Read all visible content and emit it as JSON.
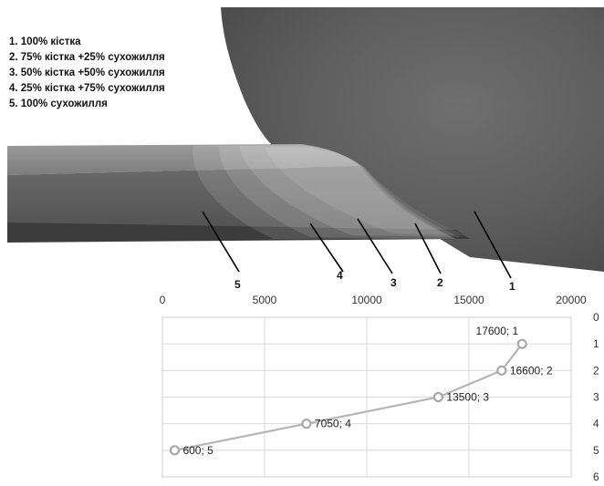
{
  "legend": [
    "1. 100% кістка",
    "2. 75% кістка +25% сухожилля",
    "3. 50% кістка +50% сухожилля",
    "4. 25% кістка +75% сухожилля",
    "5. 100% сухожилля"
  ],
  "zone_labels": [
    "5",
    "4",
    "3",
    "2",
    "1"
  ],
  "chart_data": {
    "type": "line",
    "x_ticks": [
      "0",
      "5000",
      "10000",
      "15000",
      "20000"
    ],
    "y_ticks": [
      "0",
      "1",
      "2",
      "3",
      "4",
      "5",
      "6"
    ],
    "xlim": [
      0,
      20000
    ],
    "ylim": [
      0,
      6
    ],
    "y_inverted": true,
    "x_axis_position": "top",
    "y_axis_position": "right",
    "grid": true,
    "points": [
      {
        "x": 600,
        "y": 5,
        "label": "600; 5"
      },
      {
        "x": 7050,
        "y": 4,
        "label": "7050; 4"
      },
      {
        "x": 13500,
        "y": 3,
        "label": "13500; 3"
      },
      {
        "x": 16600,
        "y": 2,
        "label": "16600; 2"
      },
      {
        "x": 17600,
        "y": 1,
        "label": "17600; 1"
      }
    ],
    "line_color": "#b5b5b5"
  }
}
